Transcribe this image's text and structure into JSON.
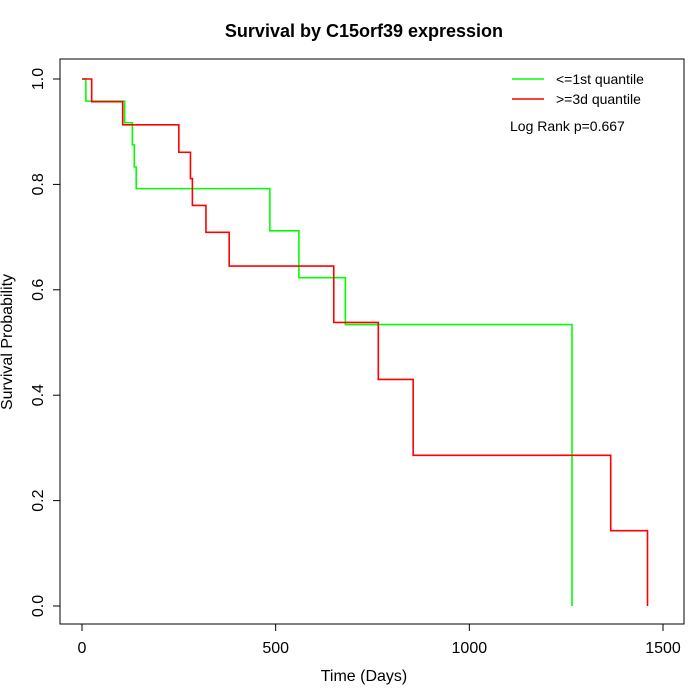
{
  "chart_data": {
    "type": "line",
    "title": "Survival by C15orf39 expression",
    "xlabel": "Time (Days)",
    "ylabel": "Survival Probability",
    "xlim": [
      0,
      1500
    ],
    "ylim": [
      0,
      1.0
    ],
    "x_ticks": [
      0,
      500,
      1000,
      1500
    ],
    "x_tick_labels": [
      "0",
      "500",
      "1000",
      "1500"
    ],
    "y_ticks": [
      0,
      0.2,
      0.4,
      0.6,
      0.8,
      1.0
    ],
    "y_tick_labels": [
      "0.0",
      "0.2",
      "0.4",
      "0.6",
      "0.8",
      "1.0"
    ],
    "grid": false,
    "legend_position": "top-right",
    "annotation": "Log Rank p=0.667",
    "series": [
      {
        "name": "<=1st quantile",
        "color": "#00ff00",
        "step": true,
        "points": [
          [
            0,
            1.0
          ],
          [
            10,
            0.958
          ],
          [
            110,
            0.917
          ],
          [
            130,
            0.875
          ],
          [
            135,
            0.833
          ],
          [
            140,
            0.792
          ],
          [
            485,
            0.712
          ],
          [
            560,
            0.623
          ],
          [
            680,
            0.534
          ],
          [
            1265,
            0.0
          ]
        ]
      },
      {
        "name": ">=3d quantile",
        "color": "#ff0000",
        "step": true,
        "points": [
          [
            0,
            1.0
          ],
          [
            25,
            0.957
          ],
          [
            105,
            0.913
          ],
          [
            250,
            0.861
          ],
          [
            280,
            0.811
          ],
          [
            285,
            0.76
          ],
          [
            320,
            0.709
          ],
          [
            380,
            0.645
          ],
          [
            650,
            0.538
          ],
          [
            765,
            0.43
          ],
          [
            855,
            0.286
          ],
          [
            1365,
            0.143
          ],
          [
            1460,
            0.0
          ]
        ]
      }
    ]
  }
}
